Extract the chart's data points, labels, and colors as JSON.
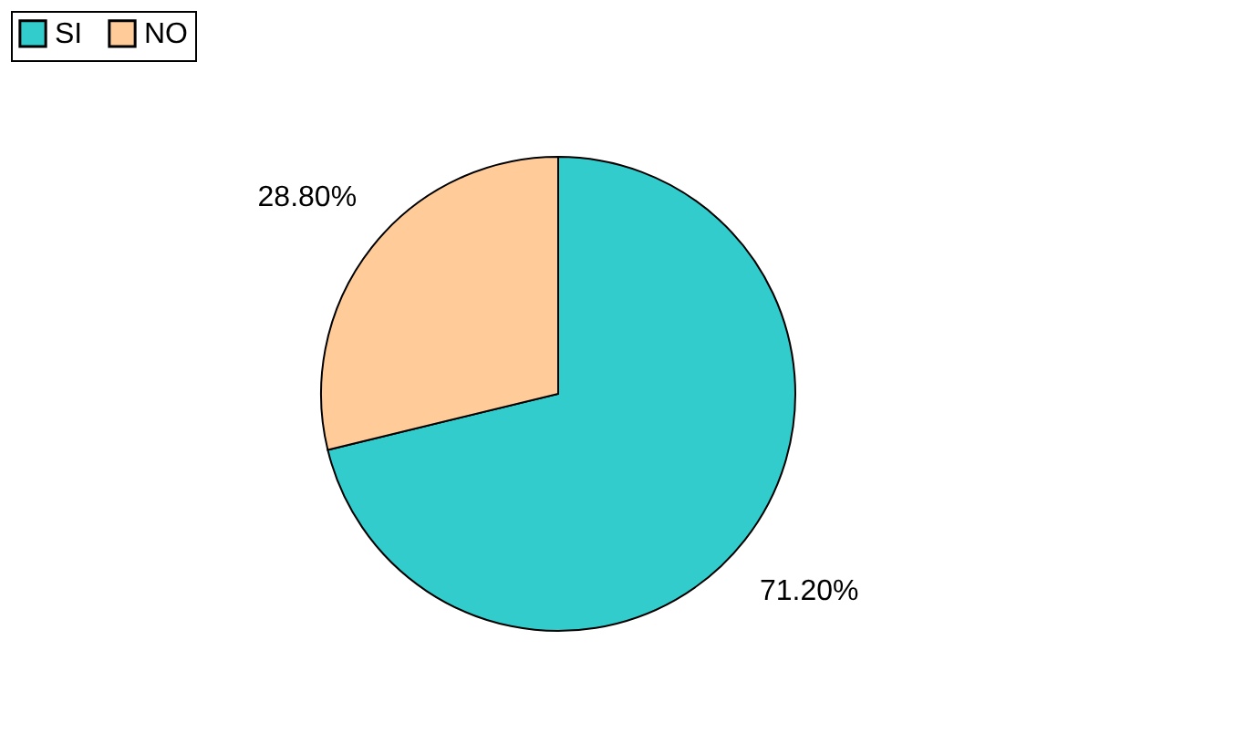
{
  "chart_data": {
    "type": "pie",
    "categories": [
      "SI",
      "NO"
    ],
    "values": [
      71.2,
      28.8
    ],
    "colors": [
      "#33cccc",
      "#ffcc99"
    ],
    "value_labels": [
      "71.20%",
      "28.80%"
    ],
    "legend": "top"
  }
}
